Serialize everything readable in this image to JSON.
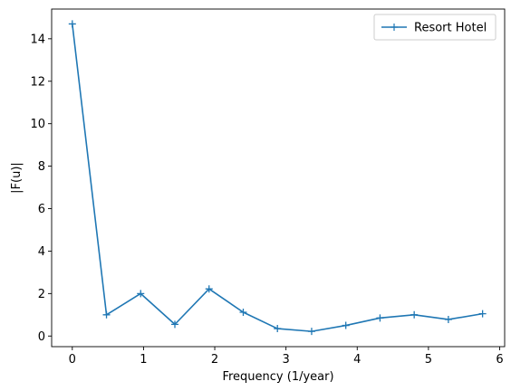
{
  "chart_data": {
    "type": "line",
    "title": "",
    "xlabel": "Frequency (1/year)",
    "ylabel": "|F(u)|",
    "xlim": [
      -0.29,
      6.07
    ],
    "ylim": [
      -0.5,
      15.4
    ],
    "xticks": [
      0,
      1,
      2,
      3,
      4,
      5,
      6
    ],
    "xtick_labels": [
      "0",
      "1",
      "2",
      "3",
      "4",
      "5",
      "6"
    ],
    "yticks": [
      0,
      2,
      4,
      6,
      8,
      10,
      12,
      14
    ],
    "ytick_labels": [
      "0",
      "2",
      "4",
      "6",
      "8",
      "10",
      "12",
      "14"
    ],
    "grid": false,
    "legend_position": "top-right",
    "series": [
      {
        "name": "Resort Hotel",
        "color": "#1f77b4",
        "marker": "plus",
        "x": [
          0,
          0.48,
          0.96,
          1.44,
          1.92,
          2.4,
          2.88,
          3.36,
          3.84,
          4.32,
          4.8,
          5.28,
          5.76
        ],
        "y": [
          14.7,
          1.0,
          2.0,
          0.55,
          2.22,
          1.12,
          0.35,
          0.22,
          0.5,
          0.85,
          1.0,
          0.78,
          1.05
        ]
      }
    ]
  }
}
